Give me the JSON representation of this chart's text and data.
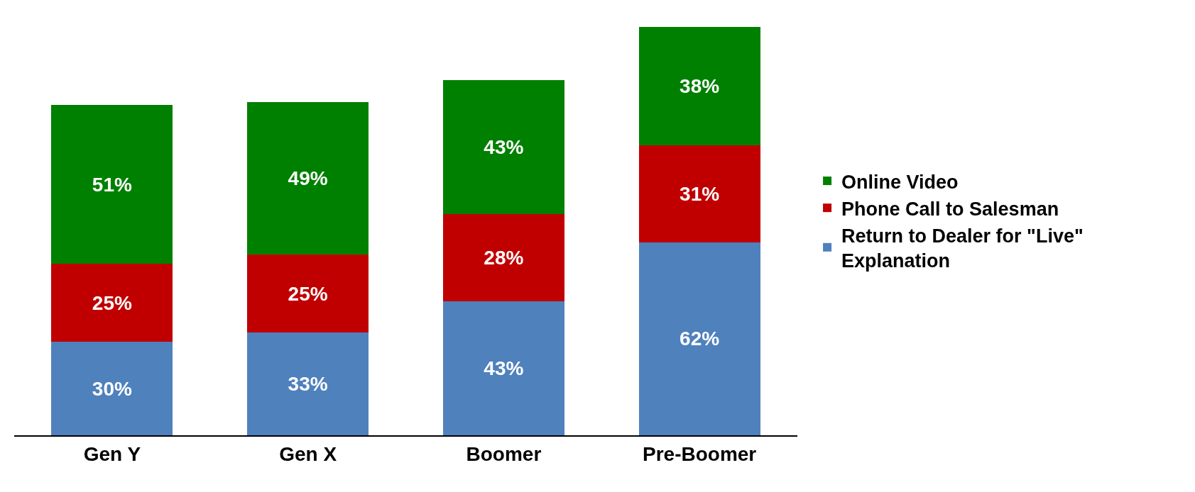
{
  "chart_data": {
    "type": "bar",
    "stacked": true,
    "legend": "right",
    "categories": [
      "Gen Y",
      "Gen X",
      "Boomer",
      "Pre-Boomer"
    ],
    "series": [
      {
        "name": "Return to Dealer for \"Live\" Explanation",
        "color": "#4f81bd",
        "values": [
          30,
          33,
          43,
          62
        ],
        "value_labels": [
          "30%",
          "33%",
          "43%",
          "62%"
        ]
      },
      {
        "name": "Phone Call to Salesman",
        "color": "#c00000",
        "values": [
          25,
          25,
          28,
          31
        ],
        "value_labels": [
          "25%",
          "25%",
          "28%",
          "31%"
        ]
      },
      {
        "name": "Online Video",
        "color": "#008000",
        "values": [
          51,
          49,
          43,
          38
        ],
        "value_labels": [
          "51%",
          "49%",
          "43%",
          "38%"
        ]
      }
    ]
  }
}
